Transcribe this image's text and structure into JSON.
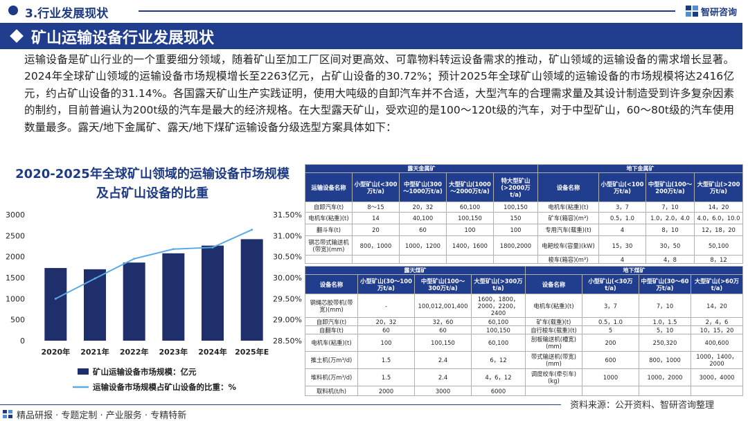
{
  "header": {
    "section": "3.行业发展现状",
    "brand": "智研咨询"
  },
  "banner": {
    "title": "矿山运输设备行业发展现状"
  },
  "intro": "运输设备是矿山行业的一个重要细分领域，随着矿山至加工厂区间对更高效、可靠物料转运设备需求的推动，矿山领域的运输设备的需求增长显著。2024年全球矿山领域的运输设备市场规模增长至2263亿元，占矿山设备的30.72%；预计2025年全球矿山领域的运输设备的市场规模将达2416亿元，约占矿山设备的31.14%。各国露天矿山生产实践证明，使用大吨级的自卸汽车并不合适，大型汽车的合理需求量及其设计制造受到许多复杂因素的制约，目前普遍认为200t级的汽车是最大的经济规格。在大型露天矿山，受欢迎的是100～120t级的汽车，对于中型矿山，60～80t级的汽车使用数量最多。露天/地下金属矿、露天/地下煤矿运输设备分级选型方案具体如下：",
  "chart_data": {
    "type": "bar",
    "title": "2020-2025年全球矿山领域的运输设备市场规模及占矿山设备的比重",
    "categories": [
      "2020年",
      "2021年",
      "2022年",
      "2023年",
      "2024年",
      "2025年E"
    ],
    "series": [
      {
        "name": "矿山运输设备市场规模：亿元",
        "type": "bar",
        "axis": "left",
        "color": "#1f2f6b",
        "values": [
          1730,
          1700,
          1860,
          2080,
          2263,
          2416
        ]
      },
      {
        "name": "运输设备市场规模占矿山设备的比重：%",
        "type": "line",
        "axis": "right",
        "color": "#5aa9e6",
        "values": [
          29.5,
          29.98,
          30.45,
          30.68,
          30.72,
          31.14
        ]
      }
    ],
    "left_axis": {
      "ylim": [
        0,
        3000
      ],
      "ticks": [
        "0",
        "500",
        "1000",
        "1500",
        "2000",
        "2500",
        "3000"
      ]
    },
    "right_axis": {
      "ylim": [
        28.5,
        31.5
      ],
      "ticks": [
        "28.50%",
        "29.00%",
        "29.50%",
        "30.00%",
        "30.50%",
        "31.00%",
        "31.50%"
      ]
    },
    "legend_position": "bottom",
    "grid": false
  },
  "table1": {
    "groups": [
      "露天金属矿",
      "地下金属矿"
    ],
    "headers": [
      "运输设备名称",
      "小型矿山(<300万t/a)",
      "中型矿山(300～1000万t/a)",
      "大型矿山(1000～2000万t/a)",
      "特大型矿山(>2000万t/a)",
      "设备名称",
      "小型矿山(<100万t/a)",
      "中型矿山(100～200万t/a)",
      "大型矿山(>200万t/a)"
    ],
    "rows": [
      [
        "自卸汽车(t)",
        "8～15",
        "20，32",
        "60,100",
        "100,150",
        "电机车(粘重)(t)",
        "3，7",
        "7，10",
        "14，20"
      ],
      [
        "电机车(粘重)(t)",
        "14",
        "40,100",
        "100,150",
        "150",
        "矿车(箱容)(m³)",
        "0.5，1.0",
        "1.0，2.0，4.0",
        "4.0，6.0，10.0"
      ],
      [
        "翻斗车(t)",
        "20",
        "60",
        "100",
        "100",
        "专用汽车(载重)(t)",
        "4",
        "8，10",
        "12，18，20"
      ],
      [
        "钢芯带式输送机(带宽)(mm)",
        "800，1000",
        "1000，1200",
        "1400，1600",
        "1800,2000",
        "电耙绞车(容量)(kW)",
        "15，30",
        "30，50",
        "50,100"
      ],
      [
        "",
        "",
        "",
        "",
        "",
        "梭车(箱容)(m³)",
        "4",
        "4，8",
        "8，12"
      ]
    ]
  },
  "table2": {
    "groups": [
      "露天煤矿",
      "地下煤矿"
    ],
    "headers": [
      "设备名称",
      "小型矿山(30～100万t/a)",
      "中型矿山(100～300万t/a)",
      "大型矿山(>300万t/a)",
      "设备名称",
      "小型矿山(<30万t/a)",
      "中型矿山(30～60万t/a)",
      "大型矿山(>60万t/a)"
    ],
    "rows": [
      [
        "钢绳芯胶带机(带宽)(mm)",
        "-",
        "100,012,001,400",
        "1600，1800，2000，2200，2400",
        "电机车(粘重)(t)",
        "3，7",
        "7，10",
        "14，20"
      ],
      [
        "自卸汽车(t)",
        "20，32",
        "32，60",
        "60,100",
        "矿车(载重)(t)",
        "0.5，1.0",
        "1.0，1.5",
        "2，4，6"
      ],
      [
        "自翻车(t)",
        "60",
        "60",
        "100,150",
        "自行梭车(载重)(t)",
        "5",
        "5，10",
        "10，15，20"
      ],
      [
        "电机车(粘重)(t)",
        "100",
        "100,150",
        "60,100",
        "刮板输送机(槽宽)(mm)",
        "200",
        "250,320",
        "400,600"
      ],
      [
        "推土机(万m³/d)",
        "1.5",
        "2.4",
        "6，12",
        "带式输送机(带宽)(mm)",
        "600",
        "800，1000",
        "1000，1400，2000"
      ],
      [
        "堆料机(万m³/d)",
        "1.5",
        "2.4",
        "4，6，12",
        "调度绞车(牵引车)(kg)",
        "1000",
        "1000，2000",
        "3000，4000"
      ],
      [
        "取料机(t/h)",
        "2000",
        "3000",
        "6000",
        "",
        "",
        "",
        ""
      ]
    ]
  },
  "footer": {
    "source": "资料来源：公开资料、智研咨询整理",
    "tagline": "精品研报 · 专题定制 · 产业服务 · 专精特新"
  }
}
